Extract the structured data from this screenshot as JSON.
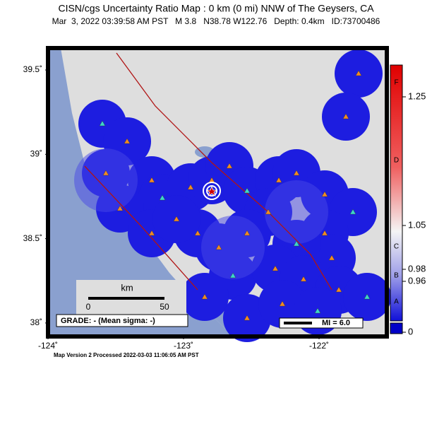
{
  "title": "CISN/cgs Uncertainty Ratio Map : 0 km (0 mi) NNW of The Geysers, CA",
  "subtitle": "Mar  3, 2022 03:39:58 AM PST   M 3.8   N38.78 W122.76   Depth: 0.4km   ID:73700486",
  "map": {
    "xlim": [
      -124,
      -121.5
    ],
    "ylim": [
      37.92,
      39.63
    ],
    "xticks": [
      {
        "value": -124,
        "label": "-124˚"
      },
      {
        "value": -123,
        "label": "-123˚"
      },
      {
        "value": -122,
        "label": "-122˚"
      }
    ],
    "yticks": [
      {
        "value": 39.5,
        "label": "39.5˚"
      },
      {
        "value": 39,
        "label": "39˚"
      },
      {
        "value": 38.5,
        "label": "38.5˚"
      },
      {
        "value": 38,
        "label": "38˚"
      }
    ]
  },
  "scale_bar": {
    "unit": "km",
    "start": "0",
    "end": "50"
  },
  "grade": "GRADE: - (Mean sigma: -)",
  "mi_legend": "MI = 6.0",
  "colorbar": {
    "letters": [
      "F",
      "D",
      "C",
      "B",
      "A"
    ],
    "ticks": [
      1.25,
      1.05,
      0.98,
      0.96,
      0
    ]
  },
  "footer": "Map Version 2 Processed 2022-03-03 11:06:05 AM PST"
}
